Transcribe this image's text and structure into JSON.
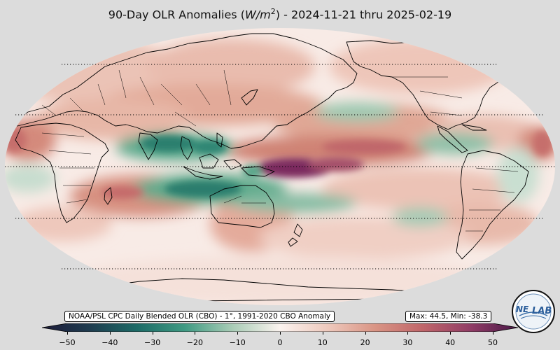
{
  "title": {
    "prefix": "90-Day OLR Anomalies (",
    "unit_base": "W/m",
    "unit_exp": "2",
    "suffix": ") - 2024-11-21 thru 2025-02-19"
  },
  "source_label": "NOAA/PSL CPC Daily Blended OLR (CBO) - 1°, 1991-2020 CBO Anomaly",
  "stats_label": "Max: 44.5,  Min: -38.3",
  "logo": {
    "text_left": "NE",
    "text_right": "LAB"
  },
  "colorbar": {
    "min": -50,
    "max": 50,
    "ticks": [
      "−50",
      "−40",
      "−30",
      "−20",
      "−10",
      "0",
      "10",
      "20",
      "30",
      "40",
      "50"
    ],
    "tick_values": [
      -50,
      -40,
      -30,
      -20,
      -10,
      0,
      10,
      20,
      30,
      40,
      50
    ],
    "colors": {
      "neg_50": "#1d1b3a",
      "neg_40": "#1f3c4f",
      "neg_30": "#1d6b67",
      "neg_20": "#3f9a83",
      "neg_10": "#a9ccb6",
      "zero": "#fbf3ef",
      "pos_10": "#eec9bd",
      "pos_20": "#d99484",
      "pos_30": "#c0666a",
      "pos_40": "#913d66",
      "pos_50": "#4a1848"
    }
  },
  "map": {
    "ocean_base": "#f8ebe6",
    "background": "#dcdcdc",
    "parallels_deg": [
      60,
      30,
      0,
      -30,
      -60
    ]
  }
}
